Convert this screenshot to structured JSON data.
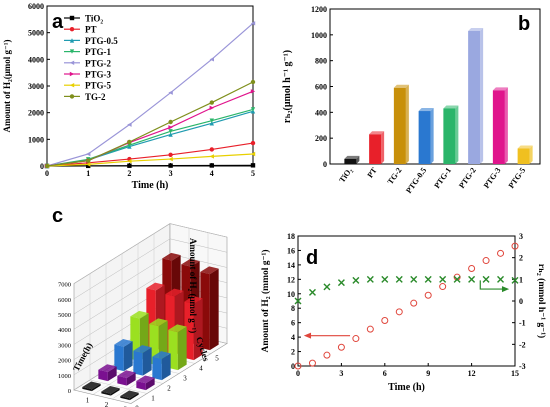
{
  "panels": {
    "a": {
      "letter": "a"
    },
    "b": {
      "letter": "b"
    },
    "c": {
      "letter": "c"
    },
    "d": {
      "letter": "d"
    }
  },
  "chart_data": [
    {
      "panel": "a",
      "type": "line",
      "xlabel": "Time (h)",
      "ylabel": "Amount of H₂(μmol g⁻¹)",
      "xlim": [
        0,
        5
      ],
      "ylim": [
        0,
        6000
      ],
      "xticks": [
        "0",
        "1",
        "2",
        "3",
        "4",
        "5"
      ],
      "yticks": [
        "0",
        "1000",
        "2000",
        "3000",
        "4000",
        "5000",
        "6000"
      ],
      "legend_position": "top-left",
      "x": [
        0,
        1,
        2,
        3,
        4,
        5
      ],
      "series": [
        {
          "name": "TiO₂",
          "color": "#000000",
          "marker": "square",
          "values": [
            0,
            5,
            10,
            15,
            20,
            25
          ]
        },
        {
          "name": "PT",
          "color": "#e8202a",
          "marker": "circle",
          "values": [
            0,
            120,
            260,
            420,
            620,
            860
          ]
        },
        {
          "name": "PTG-0.5",
          "color": "#1f9bb0",
          "marker": "triangle-up",
          "values": [
            0,
            230,
            730,
            1180,
            1600,
            2050
          ]
        },
        {
          "name": "PTG-1",
          "color": "#2ab56a",
          "marker": "triangle-down",
          "values": [
            0,
            250,
            780,
            1300,
            1700,
            2120
          ]
        },
        {
          "name": "PTG-2",
          "color": "#9a95d8",
          "marker": "triangle-left",
          "values": [
            0,
            450,
            1550,
            2750,
            4000,
            5350
          ]
        },
        {
          "name": "PTG-3",
          "color": "#e0148c",
          "marker": "triangle-right",
          "values": [
            0,
            200,
            880,
            1450,
            2180,
            2800
          ]
        },
        {
          "name": "PTG-5",
          "color": "#e8d000",
          "marker": "triangle-left",
          "values": [
            0,
            60,
            180,
            260,
            360,
            450
          ]
        },
        {
          "name": "TG-2",
          "color": "#7f8f1c",
          "marker": "circle",
          "values": [
            0,
            200,
            900,
            1650,
            2380,
            3150
          ]
        }
      ]
    },
    {
      "panel": "b",
      "type": "bar",
      "ylabel": "rₕ₂(μmol h⁻¹ g⁻¹)",
      "ylim": [
        0,
        1200
      ],
      "yticks": [
        "0",
        "200",
        "400",
        "600",
        "800",
        "1000",
        "1200"
      ],
      "categories": [
        "TiO₂",
        "PT",
        "TG-2",
        "PTG-0.5",
        "PTG-1",
        "PTG-2",
        "PTG-3",
        "PTG-5"
      ],
      "values": [
        40,
        230,
        590,
        410,
        430,
        1030,
        570,
        120
      ],
      "colors": [
        "#111111",
        "#e8202a",
        "#c8900a",
        "#2a78d0",
        "#2ab56a",
        "#9aa8e0",
        "#e0148c",
        "#f0c020"
      ]
    },
    {
      "panel": "c",
      "type": "bar",
      "projection": "3d",
      "zlabel": "Amount of H₂ (μmol g⁻¹)",
      "xlabel": "Cycles",
      "ylabel": "Time(h)",
      "zlim": [
        0,
        7000
      ],
      "zticks": [
        "0",
        "1000",
        "2000",
        "3000",
        "4000",
        "5000",
        "6000",
        "7000"
      ],
      "times": [
        "0",
        "1",
        "2",
        "3",
        "4",
        "5"
      ],
      "cycles": [
        "1",
        "2",
        "3"
      ],
      "time_colors": [
        "#111111",
        "#7a1090",
        "#2a78d0",
        "#9be020",
        "#e8202a",
        "#8a0a0a"
      ],
      "values": [
        [
          0,
          0,
          0
        ],
        [
          600,
          500,
          450
        ],
        [
          1600,
          1500,
          1400
        ],
        [
          2800,
          2600,
          2500
        ],
        [
          4000,
          3900,
          3700
        ],
        [
          5300,
          5200,
          5000
        ]
      ]
    },
    {
      "panel": "d",
      "type": "scatter",
      "xlabel": "Time (h)",
      "ylabel": "Amount of H₂ (mmol g⁻¹)",
      "y2label": "rₕ₂ (mmol h⁻¹ g⁻¹)",
      "xlim": [
        0,
        15
      ],
      "ylim": [
        0,
        18
      ],
      "y2lim": [
        -3,
        3
      ],
      "xticks": [
        "0",
        "3",
        "6",
        "9",
        "12",
        "15"
      ],
      "yticks": [
        "0",
        "2",
        "4",
        "6",
        "8",
        "10",
        "12",
        "14",
        "16",
        "18"
      ],
      "y2ticks": [
        "-3",
        "-2",
        "-1",
        "0",
        "1",
        "2",
        "3"
      ],
      "series": [
        {
          "color": "#e0463c",
          "marker": "open-circle",
          "axis": "left",
          "x": [
            0,
            1,
            2,
            3,
            4,
            5,
            6,
            7,
            8,
            9,
            10,
            11,
            12,
            13,
            14,
            15
          ],
          "values": [
            0,
            0.4,
            1.5,
            2.6,
            3.8,
            5.1,
            6.3,
            7.5,
            8.7,
            9.8,
            11.0,
            12.3,
            13.5,
            14.6,
            15.6,
            16.6
          ]
        },
        {
          "color": "#2a8a2a",
          "marker": "x",
          "axis": "right",
          "x": [
            0,
            1,
            2,
            3,
            4,
            5,
            6,
            7,
            8,
            9,
            10,
            11,
            12,
            13,
            14,
            15
          ],
          "values": [
            0,
            0.4,
            0.65,
            0.85,
            0.95,
            1.0,
            1.0,
            1.0,
            1.0,
            1.0,
            1.0,
            1.0,
            1.0,
            1.0,
            1.0,
            0.95
          ]
        }
      ]
    }
  ]
}
